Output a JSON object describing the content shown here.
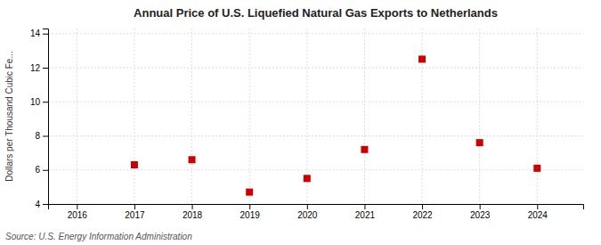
{
  "chart_data": {
    "type": "scatter",
    "title": "Annual Price of U.S. Liquefied Natural Gas Exports to Netherlands",
    "ylabel": "Dollars per Thousand Cubic Fe...",
    "annotations": [
      "Source: U.S. Energy Information Administration"
    ],
    "x": [
      2017,
      2018,
      2019,
      2020,
      2021,
      2022,
      2023,
      2024
    ],
    "values": [
      6.3,
      6.6,
      4.7,
      5.5,
      7.2,
      12.5,
      7.6,
      6.1
    ],
    "color": "#cc0000",
    "marker": "square",
    "xlim": [
      2015.5,
      2024.8
    ],
    "ylim": [
      4,
      14.3
    ],
    "xticks": [
      2016,
      2017,
      2018,
      2019,
      2020,
      2021,
      2022,
      2023,
      2024
    ],
    "yticks": [
      4,
      6,
      8,
      10,
      12,
      14
    ],
    "grid": true
  }
}
